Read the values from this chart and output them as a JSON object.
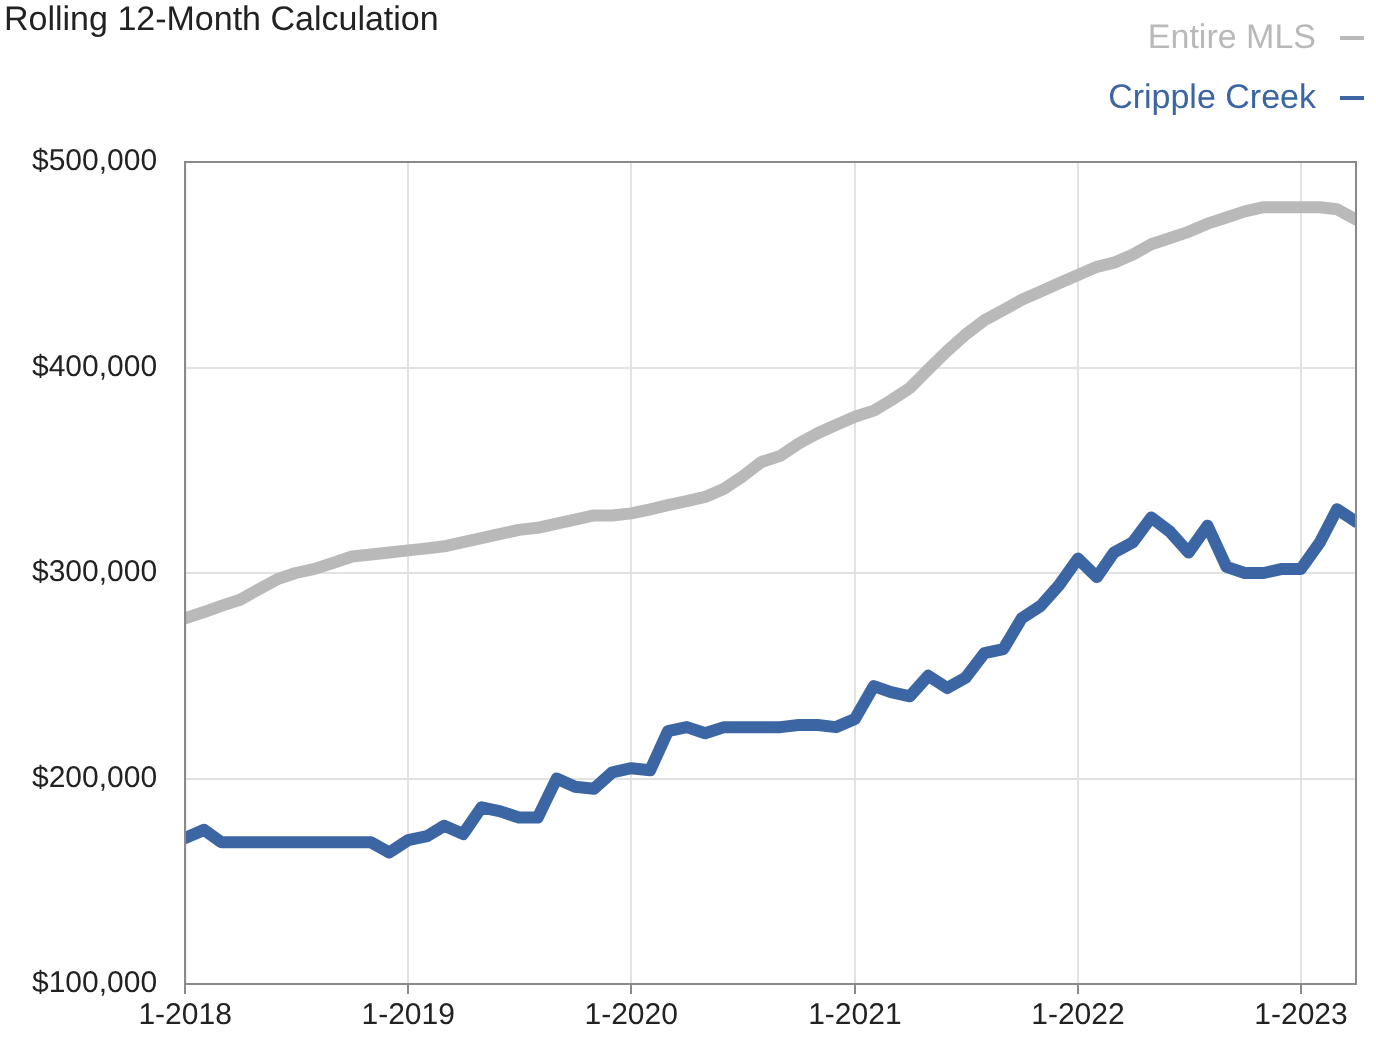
{
  "chart_data": {
    "type": "line",
    "title": "Rolling 12-Month Calculation",
    "x": [
      "2018-01",
      "2018-02",
      "2018-03",
      "2018-04",
      "2018-05",
      "2018-06",
      "2018-07",
      "2018-08",
      "2018-09",
      "2018-10",
      "2018-11",
      "2018-12",
      "2019-01",
      "2019-02",
      "2019-03",
      "2019-04",
      "2019-05",
      "2019-06",
      "2019-07",
      "2019-08",
      "2019-09",
      "2019-10",
      "2019-11",
      "2019-12",
      "2020-01",
      "2020-02",
      "2020-03",
      "2020-04",
      "2020-05",
      "2020-06",
      "2020-07",
      "2020-08",
      "2020-09",
      "2020-10",
      "2020-11",
      "2020-12",
      "2021-01",
      "2021-02",
      "2021-03",
      "2021-04",
      "2021-05",
      "2021-06",
      "2021-07",
      "2021-08",
      "2021-09",
      "2021-10",
      "2021-11",
      "2021-12",
      "2022-01",
      "2022-02",
      "2022-03",
      "2022-04",
      "2022-05",
      "2022-06",
      "2022-07",
      "2022-08",
      "2022-09",
      "2022-10",
      "2022-11",
      "2022-12",
      "2023-01",
      "2023-02",
      "2023-03",
      "2023-04"
    ],
    "series": [
      {
        "name": "Entire MLS",
        "color": "#b9b9b9",
        "values": [
          278000,
          281000,
          284000,
          287000,
          292000,
          297000,
          300000,
          302000,
          305000,
          308000,
          309000,
          310000,
          311000,
          312000,
          313000,
          315000,
          317000,
          319000,
          321000,
          322000,
          324000,
          326000,
          328000,
          328000,
          329000,
          331000,
          333000,
          335000,
          337000,
          341000,
          347000,
          354000,
          357000,
          363000,
          368000,
          372000,
          376000,
          379000,
          384000,
          390000,
          399000,
          408000,
          416000,
          423000,
          428000,
          433000,
          437000,
          441000,
          445000,
          449000,
          451000,
          455000,
          460000,
          463000,
          466000,
          470000,
          473000,
          476000,
          478000,
          478000,
          478000,
          478000,
          477000,
          472000
        ]
      },
      {
        "name": "Cripple Creek",
        "color": "#3b65a3",
        "values": [
          171000,
          175000,
          169000,
          169000,
          169000,
          169000,
          169000,
          169000,
          169000,
          169000,
          169000,
          164000,
          170000,
          172000,
          177000,
          173000,
          186000,
          184000,
          181000,
          181000,
          200000,
          196000,
          195000,
          203000,
          205000,
          204000,
          223000,
          225000,
          222000,
          225000,
          225000,
          225000,
          225000,
          226000,
          226000,
          225000,
          229000,
          245000,
          242000,
          240000,
          250000,
          244000,
          249000,
          261000,
          263000,
          278000,
          284000,
          294000,
          307000,
          298000,
          310000,
          315000,
          327000,
          320000,
          310000,
          323000,
          303000,
          300000,
          300000,
          302000,
          302000,
          315000,
          331000,
          325000
        ]
      }
    ],
    "xlim": [
      "2018-01",
      "2023-04"
    ],
    "xticks": [
      {
        "value": "2018-01",
        "label": "1-2018"
      },
      {
        "value": "2019-01",
        "label": "1-2019"
      },
      {
        "value": "2020-01",
        "label": "1-2020"
      },
      {
        "value": "2021-01",
        "label": "1-2021"
      },
      {
        "value": "2022-01",
        "label": "1-2022"
      },
      {
        "value": "2023-01",
        "label": "1-2023"
      }
    ],
    "ylim": [
      100000,
      500000
    ],
    "yticks": [
      {
        "value": 100000,
        "label": "$100,000"
      },
      {
        "value": 200000,
        "label": "$200,000"
      },
      {
        "value": 300000,
        "label": "$300,000"
      },
      {
        "value": 400000,
        "label": "$400,000"
      },
      {
        "value": 500000,
        "label": "$500,000"
      }
    ],
    "grid": true,
    "legend": "top right"
  }
}
